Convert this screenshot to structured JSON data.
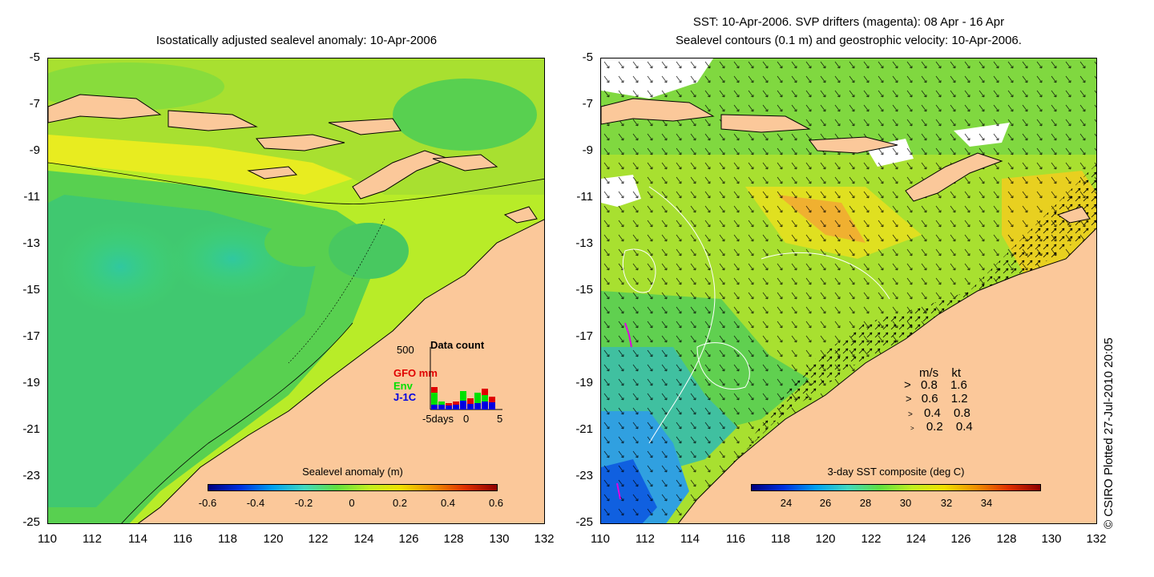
{
  "left_panel": {
    "title": "Isostatically adjusted sealevel anomaly: 10-Apr-2006",
    "y_ticks": [
      "-5",
      "-7",
      "-9",
      "-11",
      "-13",
      "-15",
      "-17",
      "-19",
      "-21",
      "-23",
      "-25"
    ],
    "x_ticks": [
      "110",
      "112",
      "114",
      "116",
      "118",
      "120",
      "122",
      "124",
      "126",
      "128",
      "130",
      "132"
    ],
    "colorbar": {
      "title": "Sealevel anomaly (m)",
      "ticks": [
        "-0.6",
        "-0.4",
        "-0.2",
        "0",
        "0.2",
        "0.4",
        "0.6"
      ],
      "range": [
        -0.6,
        0.6
      ]
    },
    "data_count": {
      "title": "Data count",
      "max_label": "500",
      "series": [
        {
          "name": "GFO mm",
          "color": "#e00000"
        },
        {
          "name": "Env",
          "color": "#00e000"
        },
        {
          "name": "J-1C",
          "color": "#0000e0"
        }
      ],
      "x_ticks": [
        "-5days",
        "0",
        "5"
      ]
    }
  },
  "right_panel": {
    "title_line1": "SST: 10-Apr-2006. SVP drifters (magenta): 08 Apr - 16 Apr",
    "title_line2": "Sealevel contours (0.1 m) and geostrophic velocity: 10-Apr-2006.",
    "y_ticks": [
      "-5",
      "-7",
      "-9",
      "-11",
      "-13",
      "-15",
      "-17",
      "-19",
      "-21",
      "-23",
      "-25"
    ],
    "x_ticks": [
      "110",
      "112",
      "114",
      "116",
      "118",
      "120",
      "122",
      "124",
      "126",
      "128",
      "130",
      "132"
    ],
    "colorbar": {
      "title": "3-day SST composite (deg C)",
      "ticks": [
        "24",
        "26",
        "28",
        "30",
        "32",
        "34"
      ]
    },
    "velocity_legend": {
      "header_ms": "m/s",
      "header_kt": "kt",
      "rows": [
        {
          "ms": "0.8",
          "kt": "1.6"
        },
        {
          "ms": "0.6",
          "kt": "1.2"
        },
        {
          "ms": "0.4",
          "kt": "0.8"
        },
        {
          "ms": "0.2",
          "kt": "0.4"
        }
      ]
    }
  },
  "credit": "© CSIRO Plotted 27-Jul-2010 20:05",
  "colors": {
    "land": "#fbc89a",
    "ocean_green": "#c0f020",
    "ocean_teal": "#30d080",
    "sst_blue": "#2080f0"
  }
}
